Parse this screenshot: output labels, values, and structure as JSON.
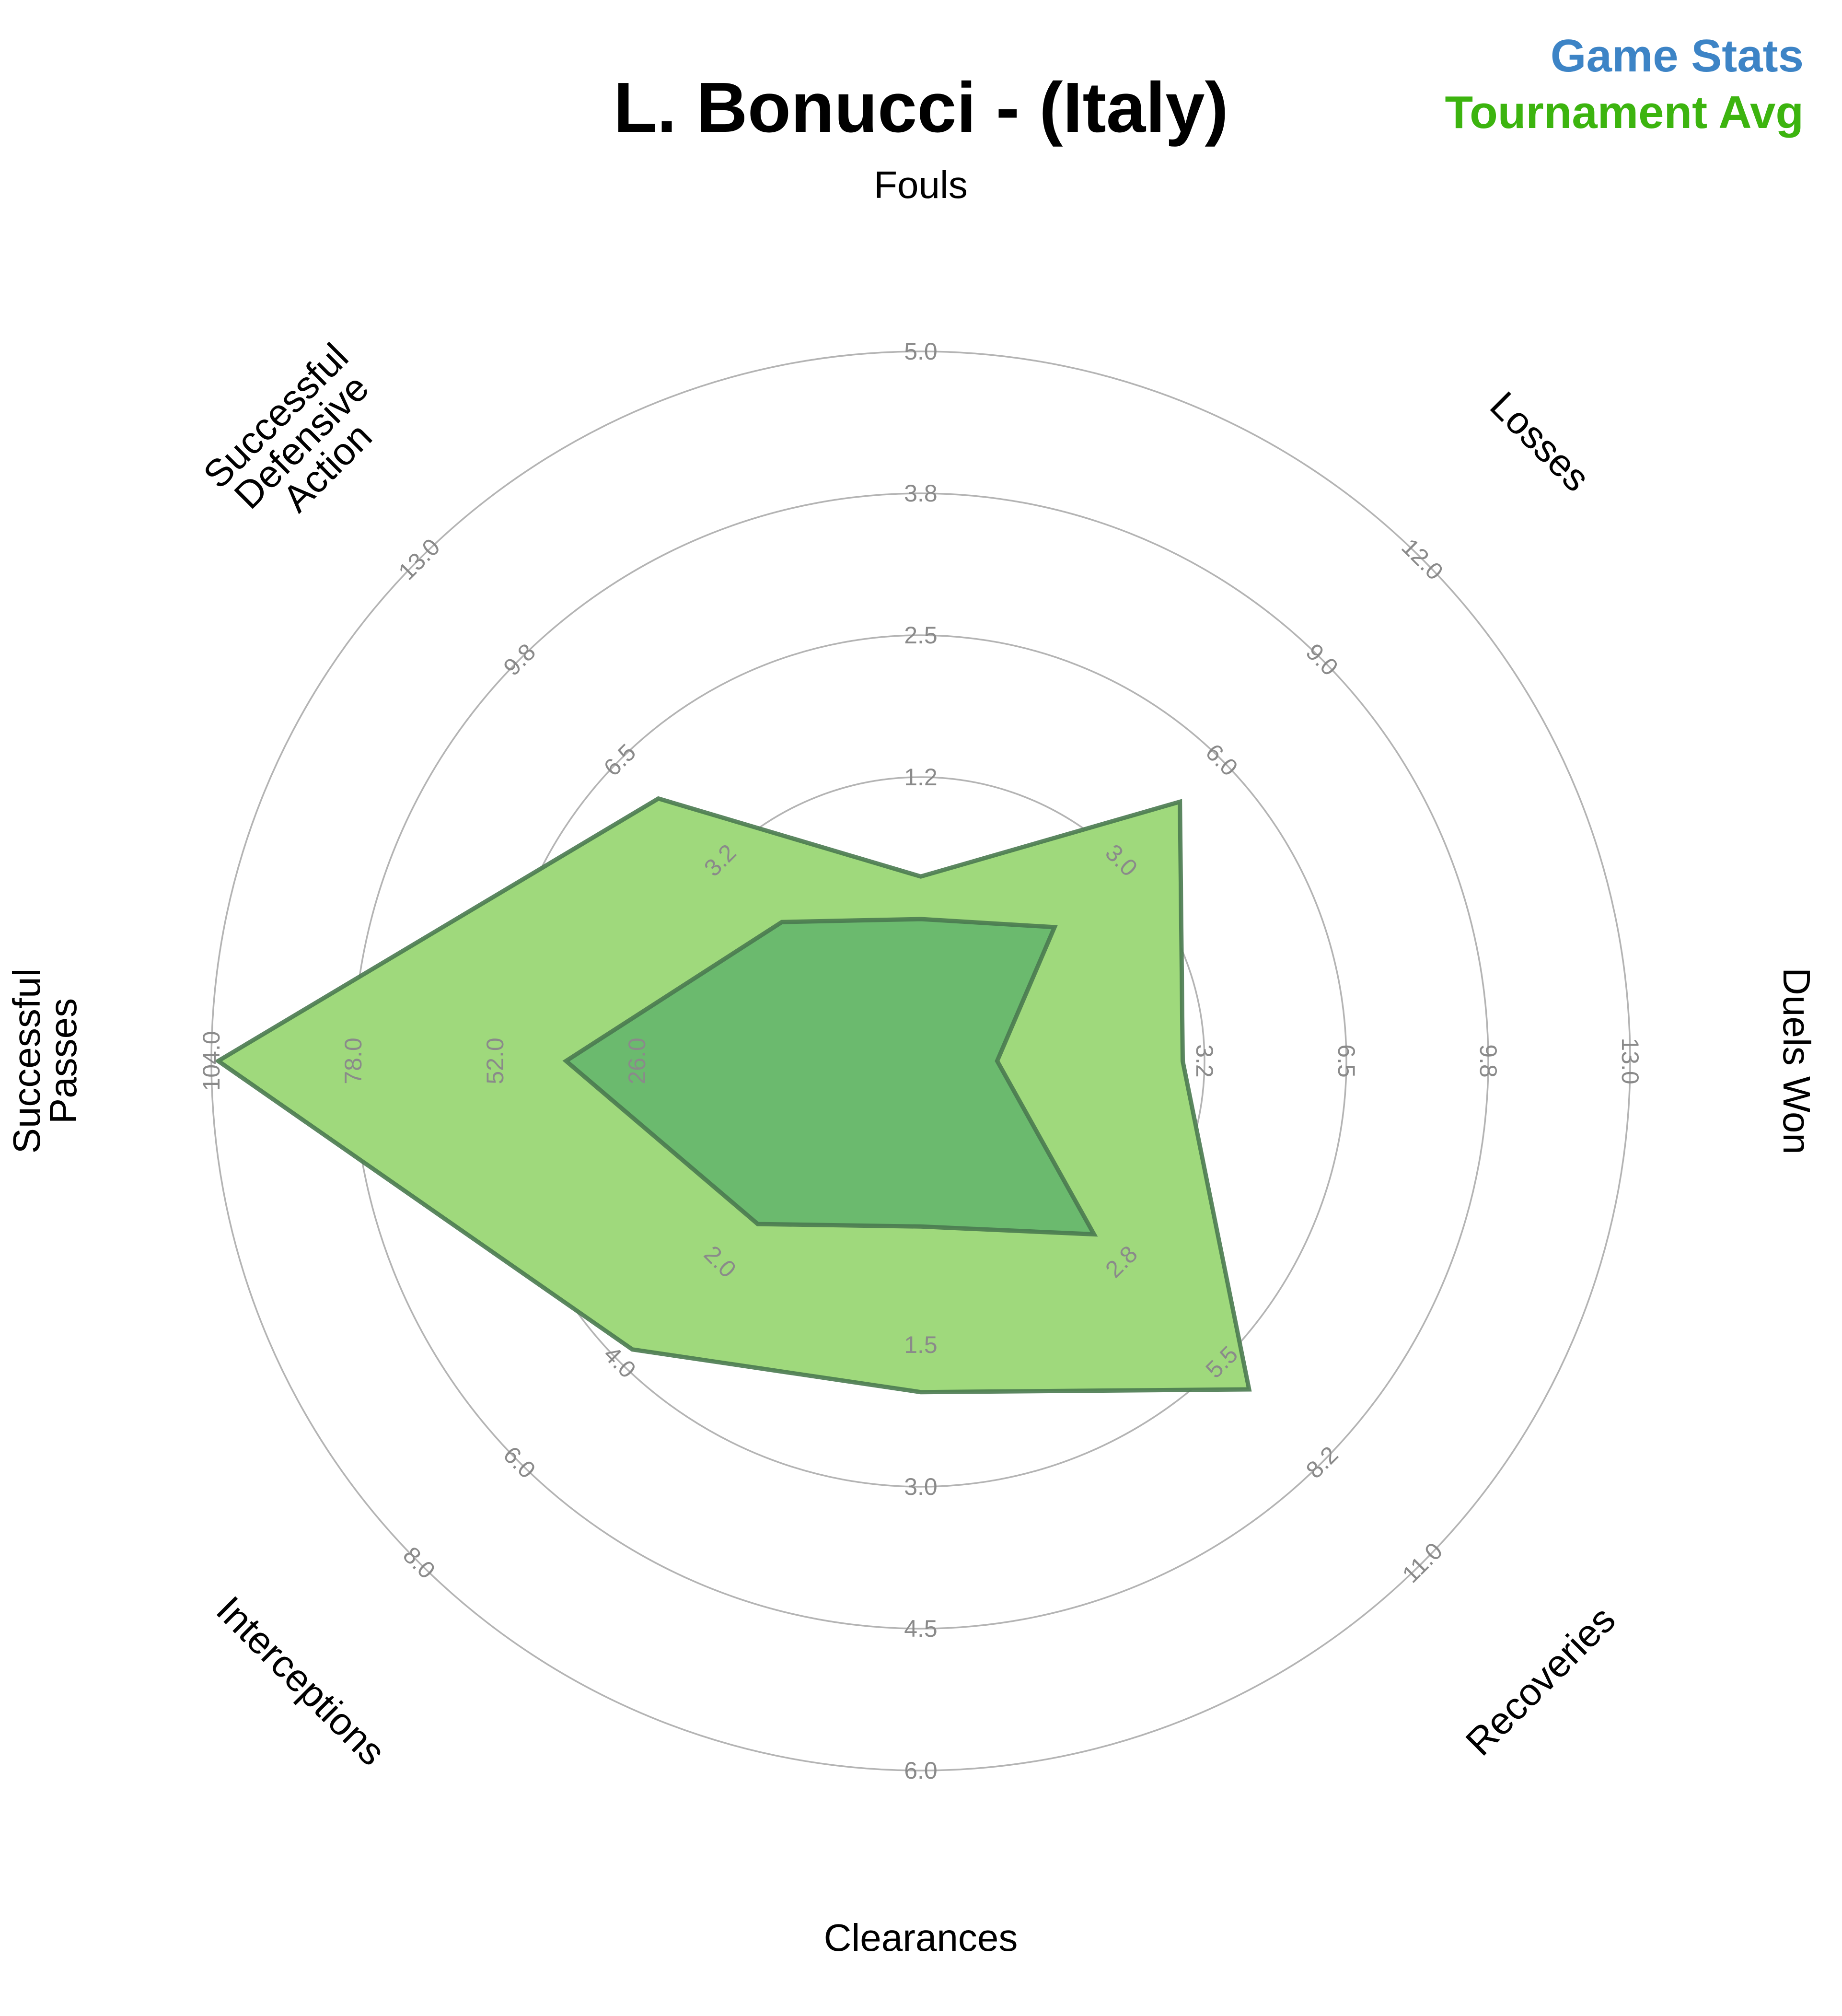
{
  "chart_data": {
    "type": "radar",
    "title": "L. Bonucci - (Italy)",
    "legend": {
      "placement": "top-right"
    },
    "colors": {
      "game_stats": "#3d84c6",
      "tournament_avg": "#3cb40f",
      "outer_fill": "#9fd97c",
      "inner_fill": "#62b46c",
      "outline": "#4a7a50",
      "grid": "#b4b4b4",
      "tick_text": "#8a8a8a"
    },
    "categories": [
      "Fouls",
      "Losses",
      "Duels Won",
      "Recoveries",
      "Clearances",
      "Interceptions",
      "Successful Passes",
      "Successful Defensive Action"
    ],
    "axis_labels": [
      [
        "Fouls"
      ],
      [
        "Losses"
      ],
      [
        "Duels Won"
      ],
      [
        "Recoveries"
      ],
      [
        "Clearances"
      ],
      [
        "Interceptions"
      ],
      [
        "Successful",
        "Passes"
      ],
      [
        "Successful",
        "Defensive",
        "Action"
      ]
    ],
    "axis_max": [
      5.0,
      12.0,
      13.0,
      11.0,
      6.0,
      8.0,
      104.0,
      13.0
    ],
    "tick_labels": [
      [
        "1.2",
        "2.5",
        "3.8",
        "5.0"
      ],
      [
        "3.0",
        "6.0",
        "9.0",
        "12.0"
      ],
      [
        "3.2",
        "6.5",
        "9.8",
        "13.0"
      ],
      [
        "2.8",
        "5.5",
        "8.2",
        "11.0"
      ],
      [
        "1.5",
        "3.0",
        "4.5",
        "6.0"
      ],
      [
        "2.0",
        "4.0",
        "6.0",
        "8.0"
      ],
      [
        "26.0",
        "52.0",
        "78.0",
        "104.0"
      ],
      [
        "3.2",
        "6.5",
        "9.8",
        "13.0"
      ]
    ],
    "grid": true,
    "series": [
      {
        "name": "Tournament Avg",
        "values": [
          1.3,
          6.2,
          4.8,
          7.2,
          2.8,
          4.6,
          103.0,
          6.8
        ]
      },
      {
        "name": "Game Stats",
        "values": [
          1.0,
          3.2,
          1.4,
          3.8,
          1.4,
          2.6,
          52.0,
          3.6
        ]
      }
    ]
  }
}
